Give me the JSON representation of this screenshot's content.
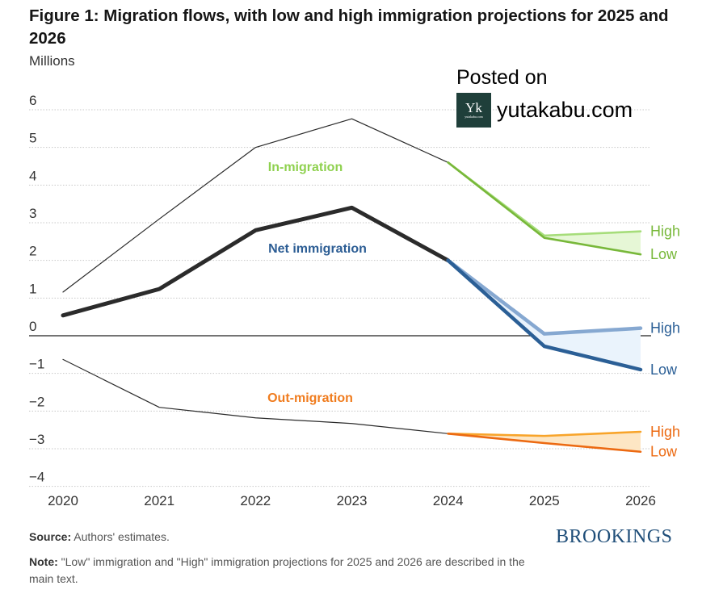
{
  "header": {
    "title": "Figure 1: Migration flows, with low and high immigration projections for 2025 and 2026",
    "units": "Millions"
  },
  "watermark": {
    "posted_on": "Posted on",
    "logo_text": "Yk",
    "logo_subtext": "yutakabu.com",
    "site": "yutakabu.com"
  },
  "colors": {
    "historical_line": "#2b2b2b",
    "in_high": "#a6dd7a",
    "in_low": "#78b83a",
    "in_fill": "#e6f7d6",
    "in_label": "#8fd14f",
    "net_high": "#86a8d1",
    "net_low": "#2b5f96",
    "net_fill": "#eaf3fc",
    "net_label": "#2c5d94",
    "out_high": "#f8a42a",
    "out_low": "#ec6a12",
    "out_fill": "#fde6c4",
    "out_label": "#f07c1e",
    "grid": "#c8c8c8",
    "zero_line": "#222222",
    "tick_text": "#333333"
  },
  "chart_data": {
    "type": "line",
    "title": "Figure 1: Migration flows, with low and high immigration projections for 2025 and 2026",
    "xlabel": "",
    "ylabel": "Millions",
    "x": [
      2020,
      2021,
      2022,
      2023,
      2024,
      2025,
      2026
    ],
    "x_tick_labels": [
      "2020",
      "2021",
      "2022",
      "2023",
      "2024",
      "2025",
      "2026"
    ],
    "ylim": [
      -4,
      6
    ],
    "y_ticks": [
      6,
      5,
      4,
      3,
      2,
      1,
      0,
      -1,
      -2,
      -3,
      -4
    ],
    "y_tick_labels": [
      "6",
      "5",
      "4",
      "3",
      "2",
      "1",
      "0",
      "−1",
      "−2",
      "−3",
      "−4"
    ],
    "grid": "horizontal-dotted",
    "series": [
      {
        "name": "In-migration",
        "label": "In-migration",
        "historical": [
          1.16,
          3.1,
          5.0,
          5.76,
          4.6
        ],
        "projection_x": [
          2024,
          2025,
          2026
        ],
        "high": [
          4.6,
          2.66,
          2.77
        ],
        "low": [
          4.6,
          2.6,
          2.16
        ]
      },
      {
        "name": "Net immigration",
        "label": "Net immigration",
        "historical": [
          0.54,
          1.24,
          2.8,
          3.4,
          2.0
        ],
        "projection_x": [
          2024,
          2025,
          2026
        ],
        "high": [
          2.0,
          0.05,
          0.2
        ],
        "low": [
          2.0,
          -0.28,
          -0.9
        ]
      },
      {
        "name": "Out-migration",
        "label": "Out-migration",
        "historical": [
          -0.63,
          -1.9,
          -2.18,
          -2.33,
          -2.6
        ],
        "projection_x": [
          2024,
          2025,
          2026
        ],
        "high": [
          -2.6,
          -2.66,
          -2.55
        ],
        "low": [
          -2.6,
          -2.85,
          -3.08
        ]
      }
    ],
    "end_labels": {
      "high": "High",
      "low": "Low"
    }
  },
  "footer": {
    "source_label": "Source:",
    "source_text": " Authors' estimates.",
    "note_label": "Note:",
    "note_text": " \"Low\" immigration and \"High\" immigration projections for 2025 and 2026 are described in the main text.",
    "brand": "BROOKINGS"
  }
}
